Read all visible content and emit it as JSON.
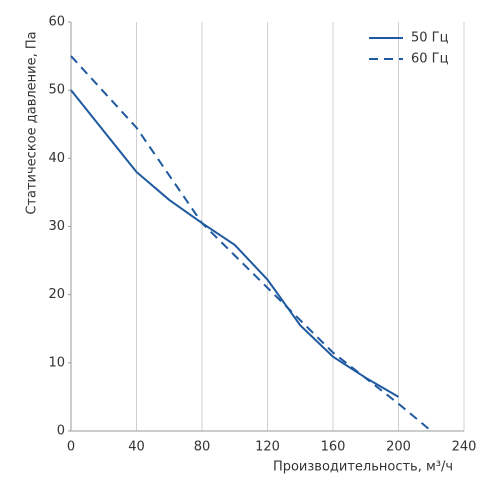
{
  "chart_data": {
    "type": "line",
    "xlabel": "Производительность, м³/ч",
    "ylabel": "Статическое давление, Па",
    "xlim": [
      0,
      240
    ],
    "xticks": [
      0,
      40,
      80,
      120,
      160,
      200,
      240
    ],
    "ylim": [
      0,
      60
    ],
    "yticks": [
      0,
      10,
      20,
      30,
      40,
      50,
      60
    ],
    "grid": "x",
    "legend": "upper right",
    "series": [
      {
        "name": "50 Гц",
        "color": "#1f5aa0",
        "linestyle": "solid",
        "x": [
          0,
          20,
          40,
          60,
          80,
          100,
          120,
          140,
          160,
          180,
          200
        ],
        "values": [
          50,
          44,
          38,
          33.9,
          30.5,
          27.3,
          22.2,
          15.5,
          10.9,
          7.8,
          5
        ]
      },
      {
        "name": "60 Гц",
        "color": "#1f5aa0",
        "linestyle": "dashed",
        "x": [
          0,
          40,
          80,
          120,
          160,
          200,
          220
        ],
        "values": [
          55,
          44.5,
          30.5,
          21,
          11.5,
          4,
          0
        ]
      }
    ]
  }
}
